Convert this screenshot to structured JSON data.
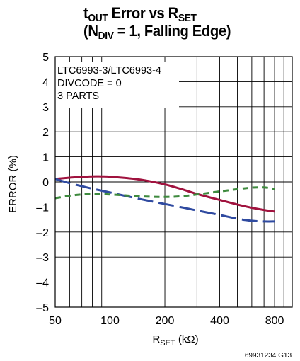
{
  "title": {
    "line1_main": "t",
    "line1_sub": "OUT",
    "line1_rest": " Error vs R",
    "line1_sub2": "SET",
    "line2_open": "(N",
    "line2_sub": "DIV",
    "line2_rest": " = 1, Falling Edge)"
  },
  "chart_data": {
    "type": "line",
    "title": "tOUT Error vs RSET (NDIV = 1, Falling Edge)",
    "xlabel_main": "R",
    "xlabel_sub": "SET",
    "xlabel_rest": " (kΩ)",
    "ylabel": "ERROR (%)",
    "x_scale": "log",
    "xlim": [
      50,
      1000
    ],
    "ylim": [
      -5,
      5
    ],
    "grid": true,
    "x_ticks": [
      50,
      100,
      200,
      400,
      800
    ],
    "x_tick_labels": [
      "50",
      "100",
      "200",
      "400",
      "800"
    ],
    "x_grid": [
      50,
      60,
      70,
      80,
      90,
      100,
      200,
      300,
      400,
      500,
      600,
      700,
      800,
      900,
      1000
    ],
    "y_ticks": [
      5,
      4,
      3,
      2,
      1,
      0,
      -1,
      -2,
      -3,
      -4,
      -5
    ],
    "y_tick_labels": [
      "5",
      "4",
      "3",
      "2",
      "1",
      "0",
      "–1",
      "–2",
      "–3",
      "–4",
      "–5"
    ],
    "annotation_lines": [
      "LTC6993-3/LTC6993-4",
      "DIVCODE = 0",
      "3 PARTS"
    ],
    "series": [
      {
        "color": "#a0123e",
        "dash": "solid",
        "x": [
          50,
          60,
          70,
          80,
          90,
          100,
          120,
          150,
          200,
          250,
          300,
          400,
          500,
          600,
          700,
          800
        ],
        "y": [
          0.12,
          0.17,
          0.2,
          0.22,
          0.22,
          0.21,
          0.16,
          0.08,
          -0.1,
          -0.3,
          -0.48,
          -0.72,
          -0.9,
          -1.03,
          -1.12,
          -1.18
        ]
      },
      {
        "color": "#2f4aa0",
        "dash": "long",
        "x": [
          50,
          60,
          70,
          80,
          100,
          120,
          150,
          200,
          250,
          300,
          400,
          500,
          600,
          700,
          800
        ],
        "y": [
          0.12,
          -0.05,
          -0.17,
          -0.27,
          -0.42,
          -0.55,
          -0.7,
          -0.88,
          -1.02,
          -1.14,
          -1.32,
          -1.47,
          -1.55,
          -1.58,
          -1.58
        ]
      },
      {
        "color": "#3e8a3e",
        "dash": "short",
        "x": [
          50,
          60,
          70,
          80,
          100,
          150,
          200,
          250,
          300,
          400,
          500,
          600,
          700,
          800
        ],
        "y": [
          -0.65,
          -0.55,
          -0.5,
          -0.49,
          -0.5,
          -0.58,
          -0.6,
          -0.57,
          -0.5,
          -0.38,
          -0.29,
          -0.23,
          -0.22,
          -0.28
        ]
      }
    ]
  },
  "footer": "69931234 G13"
}
